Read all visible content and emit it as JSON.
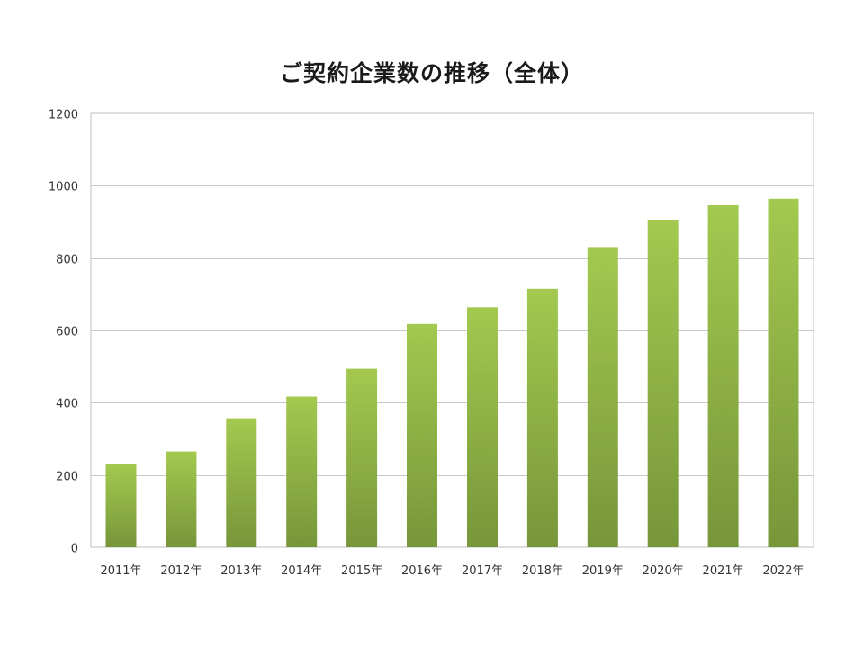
{
  "chart_data": {
    "type": "bar",
    "title": "ご契約企業数の推移（全体）",
    "categories": [
      "2011年",
      "2012年",
      "2013年",
      "2014年",
      "2015年",
      "2016年",
      "2017年",
      "2018年",
      "2019年",
      "2020年",
      "2021年",
      "2022年"
    ],
    "values": [
      230,
      265,
      357,
      417,
      494,
      618,
      664,
      715,
      828,
      904,
      946,
      964
    ],
    "ylim": [
      0,
      1200
    ],
    "yticks": [
      0,
      200,
      400,
      600,
      800,
      1000,
      1200
    ],
    "grid": true,
    "colors": {
      "bar_top": "#a3c94f",
      "bar_bottom": "#77963a",
      "grid": "#c8c8c8",
      "axis": "#bfbfbf"
    }
  }
}
